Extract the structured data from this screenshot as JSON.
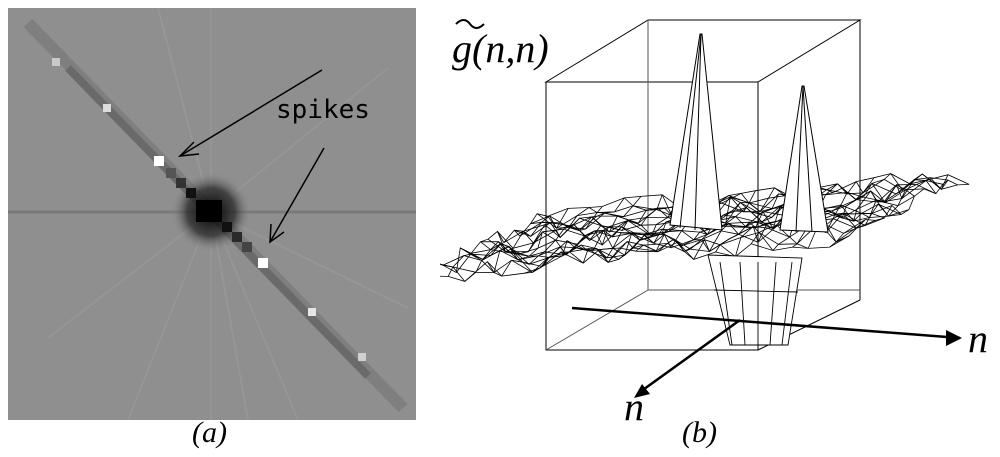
{
  "panel_a": {
    "annotation": "spikes",
    "caption": "(a)",
    "colors": {
      "background_gray": "#8c8c8c",
      "dark": "#000000",
      "bright": "#ffffff"
    }
  },
  "panel_b": {
    "z_label": "g(n",
    "z_label_mid": ",n",
    "z_label_end": ")",
    "x_axis_label": "n",
    "y_axis_label": "n",
    "caption": "(b)"
  }
}
